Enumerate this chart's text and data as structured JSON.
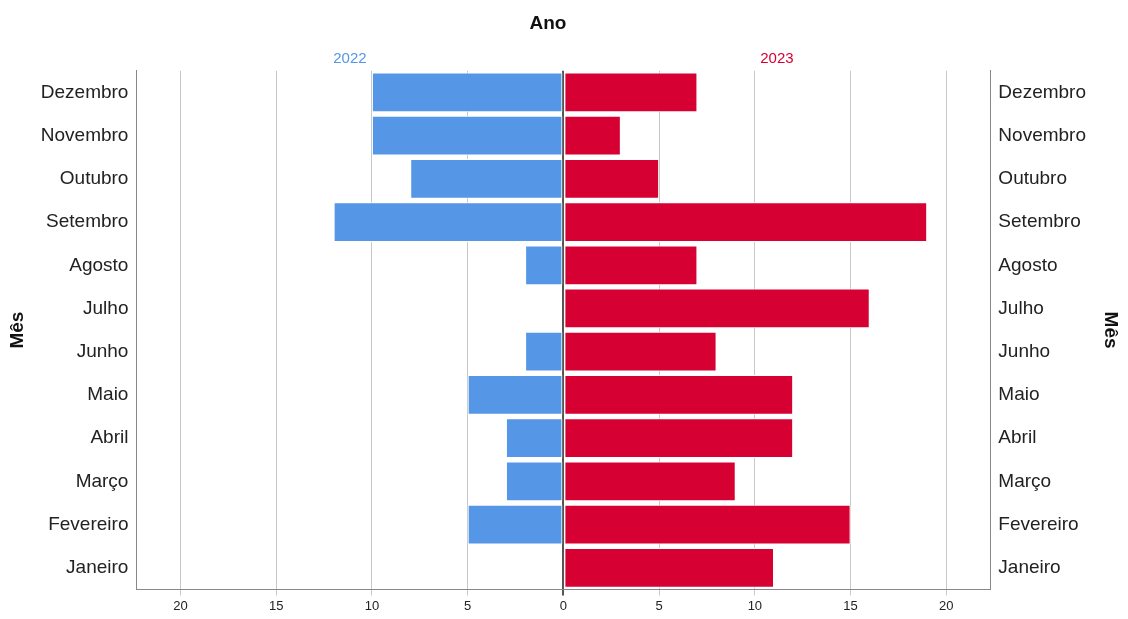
{
  "chart_data": {
    "type": "bar",
    "orientation": "horizontal",
    "stacked": true,
    "title": "Ano",
    "ylabel": "Mês",
    "annotations": [
      "Mês"
    ],
    "categories": [
      "Dezembro",
      "Novembro",
      "Outubro",
      "Setembro",
      "Agosto",
      "Julho",
      "Junho",
      "Maio",
      "Abril",
      "Março",
      "Fevereiro",
      "Janeiro"
    ],
    "series": [
      {
        "name": "2022",
        "color": "#5596e6",
        "values": [
          -10,
          -10,
          -8,
          -12,
          -2,
          0,
          -2,
          -5,
          -3,
          -3,
          -5,
          0
        ]
      },
      {
        "name": "2023",
        "color": "#d60032",
        "values": [
          7,
          3,
          5,
          19,
          7,
          16,
          8,
          12,
          12,
          9,
          15,
          11
        ]
      }
    ],
    "xlim": [
      -22.3,
      22.3
    ],
    "xticks": [
      {
        "value": -20,
        "label": "20"
      },
      {
        "value": -15,
        "label": "15"
      },
      {
        "value": -10,
        "label": "10"
      },
      {
        "value": -5,
        "label": "5"
      },
      0,
      5,
      10,
      15,
      20
    ],
    "grid": "x",
    "legend": false
  }
}
